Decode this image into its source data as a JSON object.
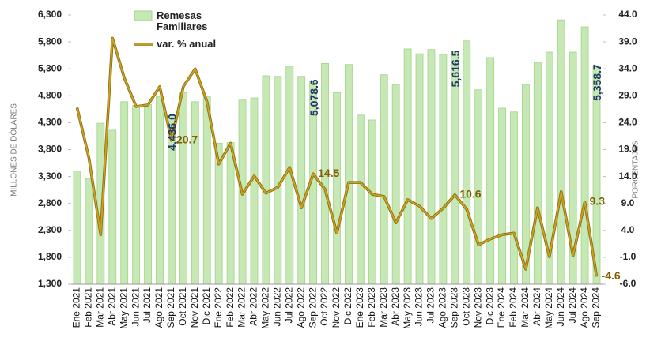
{
  "chart_data": {
    "type": "bar_line",
    "categories": [
      "Ene 2021",
      "Feb 2021",
      "Mar 2021",
      "Abr 2021",
      "May 2021",
      "Jun 2021",
      "Jul 2021",
      "Ago 2021",
      "Sep 2021",
      "Oct 2021",
      "Nov 2021",
      "Dic 2021",
      "Ene 2022",
      "Feb 2022",
      "Mar 2022",
      "Abr 2022",
      "May 2022",
      "Jun 2022",
      "Jul 2022",
      "Ago 2022",
      "Sep 2022",
      "Oct 2022",
      "Nov 2022",
      "Dic 2022",
      "Ene 2023",
      "Feb 2023",
      "Mar 2023",
      "Abr 2023",
      "May 2023",
      "Jun 2023",
      "Jul 2023",
      "Ago 2023",
      "Sep 2023",
      "Oct 2023",
      "Nov 2023",
      "Dic 2023",
      "Ene 2024",
      "Feb 2024",
      "Mar 2024",
      "Abr 2024",
      "May 2024",
      "Jun 2024",
      "Jul 2024",
      "Ago 2024",
      "Sep 2024"
    ],
    "series": [
      {
        "name": "Remesas Familiares",
        "type": "bar",
        "color": "#c5e8b4",
        "edge": "#a3d38a",
        "values": [
          3400,
          3265,
          4290,
          4160,
          4690,
          4620,
          4640,
          4790,
          4436.0,
          4860,
          4690,
          4780,
          3920,
          3930,
          4720,
          4760,
          5170,
          5160,
          5350,
          5160,
          5078.6,
          5400,
          4860,
          5380,
          4440,
          4350,
          5190,
          5010,
          5670,
          5580,
          5660,
          5570,
          5616.5,
          5820,
          4910,
          5510,
          4570,
          4500,
          5010,
          5420,
          5610,
          6210,
          5610,
          6080,
          5358.7
        ],
        "value_labels": [
          null,
          null,
          null,
          null,
          null,
          null,
          null,
          null,
          "4,436.0",
          null,
          null,
          null,
          null,
          null,
          null,
          null,
          null,
          null,
          null,
          null,
          "5,078.6",
          null,
          null,
          null,
          null,
          null,
          null,
          null,
          null,
          null,
          null,
          null,
          "5,616.5",
          null,
          null,
          null,
          null,
          null,
          null,
          null,
          null,
          null,
          null,
          null,
          "5,358.7"
        ],
        "label_color": "#1f3864"
      },
      {
        "name": "var. % anual",
        "type": "line",
        "axis": "y2",
        "color": "#c9a227",
        "values": [
          26.8,
          17.5,
          3.2,
          39.7,
          32.3,
          27.0,
          27.3,
          30.7,
          20.7,
          30.7,
          34.0,
          27.9,
          16.3,
          20.2,
          10.7,
          14.1,
          10.9,
          12.0,
          15.7,
          8.2,
          14.5,
          11.6,
          3.5,
          12.9,
          12.9,
          10.7,
          10.3,
          5.4,
          9.7,
          8.5,
          6.2,
          8.1,
          10.6,
          7.9,
          1.3,
          2.4,
          3.2,
          3.5,
          -3.2,
          8.2,
          -0.9,
          11.2,
          -0.7,
          9.3,
          -4.6
        ],
        "value_labels": [
          null,
          null,
          null,
          null,
          null,
          null,
          null,
          null,
          "20.7",
          null,
          null,
          null,
          null,
          null,
          null,
          null,
          null,
          null,
          null,
          null,
          "14.5",
          null,
          null,
          null,
          null,
          null,
          null,
          null,
          null,
          null,
          null,
          null,
          "10.6",
          null,
          null,
          null,
          null,
          null,
          null,
          null,
          null,
          null,
          null,
          "9.3",
          "-4.6"
        ],
        "label_color": "#806000"
      }
    ],
    "y_label": "MILLONES DE DÓLARES",
    "y2_label": "PORCENTAJES",
    "ylim": [
      1300,
      6300
    ],
    "yticks": [
      {
        "value": 1300,
        "label": "1,300"
      },
      {
        "value": 1800,
        "label": "1,800"
      },
      {
        "value": 2300,
        "label": "2,300"
      },
      {
        "value": 2800,
        "label": "2,800"
      },
      {
        "value": 3300,
        "label": "3,300"
      },
      {
        "value": 3800,
        "label": "3,800"
      },
      {
        "value": 4300,
        "label": "4,300"
      },
      {
        "value": 4800,
        "label": "4,800"
      },
      {
        "value": 5300,
        "label": "5,300"
      },
      {
        "value": 5800,
        "label": "5,800"
      },
      {
        "value": 6300,
        "label": "6,300"
      }
    ],
    "y2lim": [
      -6,
      44
    ],
    "y2ticks": [
      {
        "value": -6,
        "label": "-6.0"
      },
      {
        "value": -1,
        "label": "-1.0"
      },
      {
        "value": 4,
        "label": "4.0"
      },
      {
        "value": 9,
        "label": "9.0"
      },
      {
        "value": 14,
        "label": "14.0"
      },
      {
        "value": 19,
        "label": "19.0"
      },
      {
        "value": 24,
        "label": "24.0"
      },
      {
        "value": 29,
        "label": "29.0"
      },
      {
        "value": 34,
        "label": "34.0"
      },
      {
        "value": 39,
        "label": "39.0"
      },
      {
        "value": 44,
        "label": "44.0"
      }
    ],
    "legend": "upper left"
  }
}
